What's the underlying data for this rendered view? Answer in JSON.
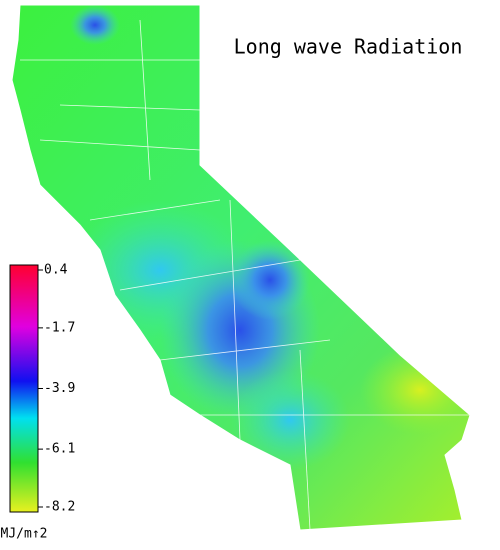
{
  "title": "Long wave Radiation",
  "colorbar": {
    "ticks": [
      0.4,
      -1.7,
      -3.9,
      -6.1,
      -8.2
    ],
    "unit": "MJ/m↑2"
  }
}
